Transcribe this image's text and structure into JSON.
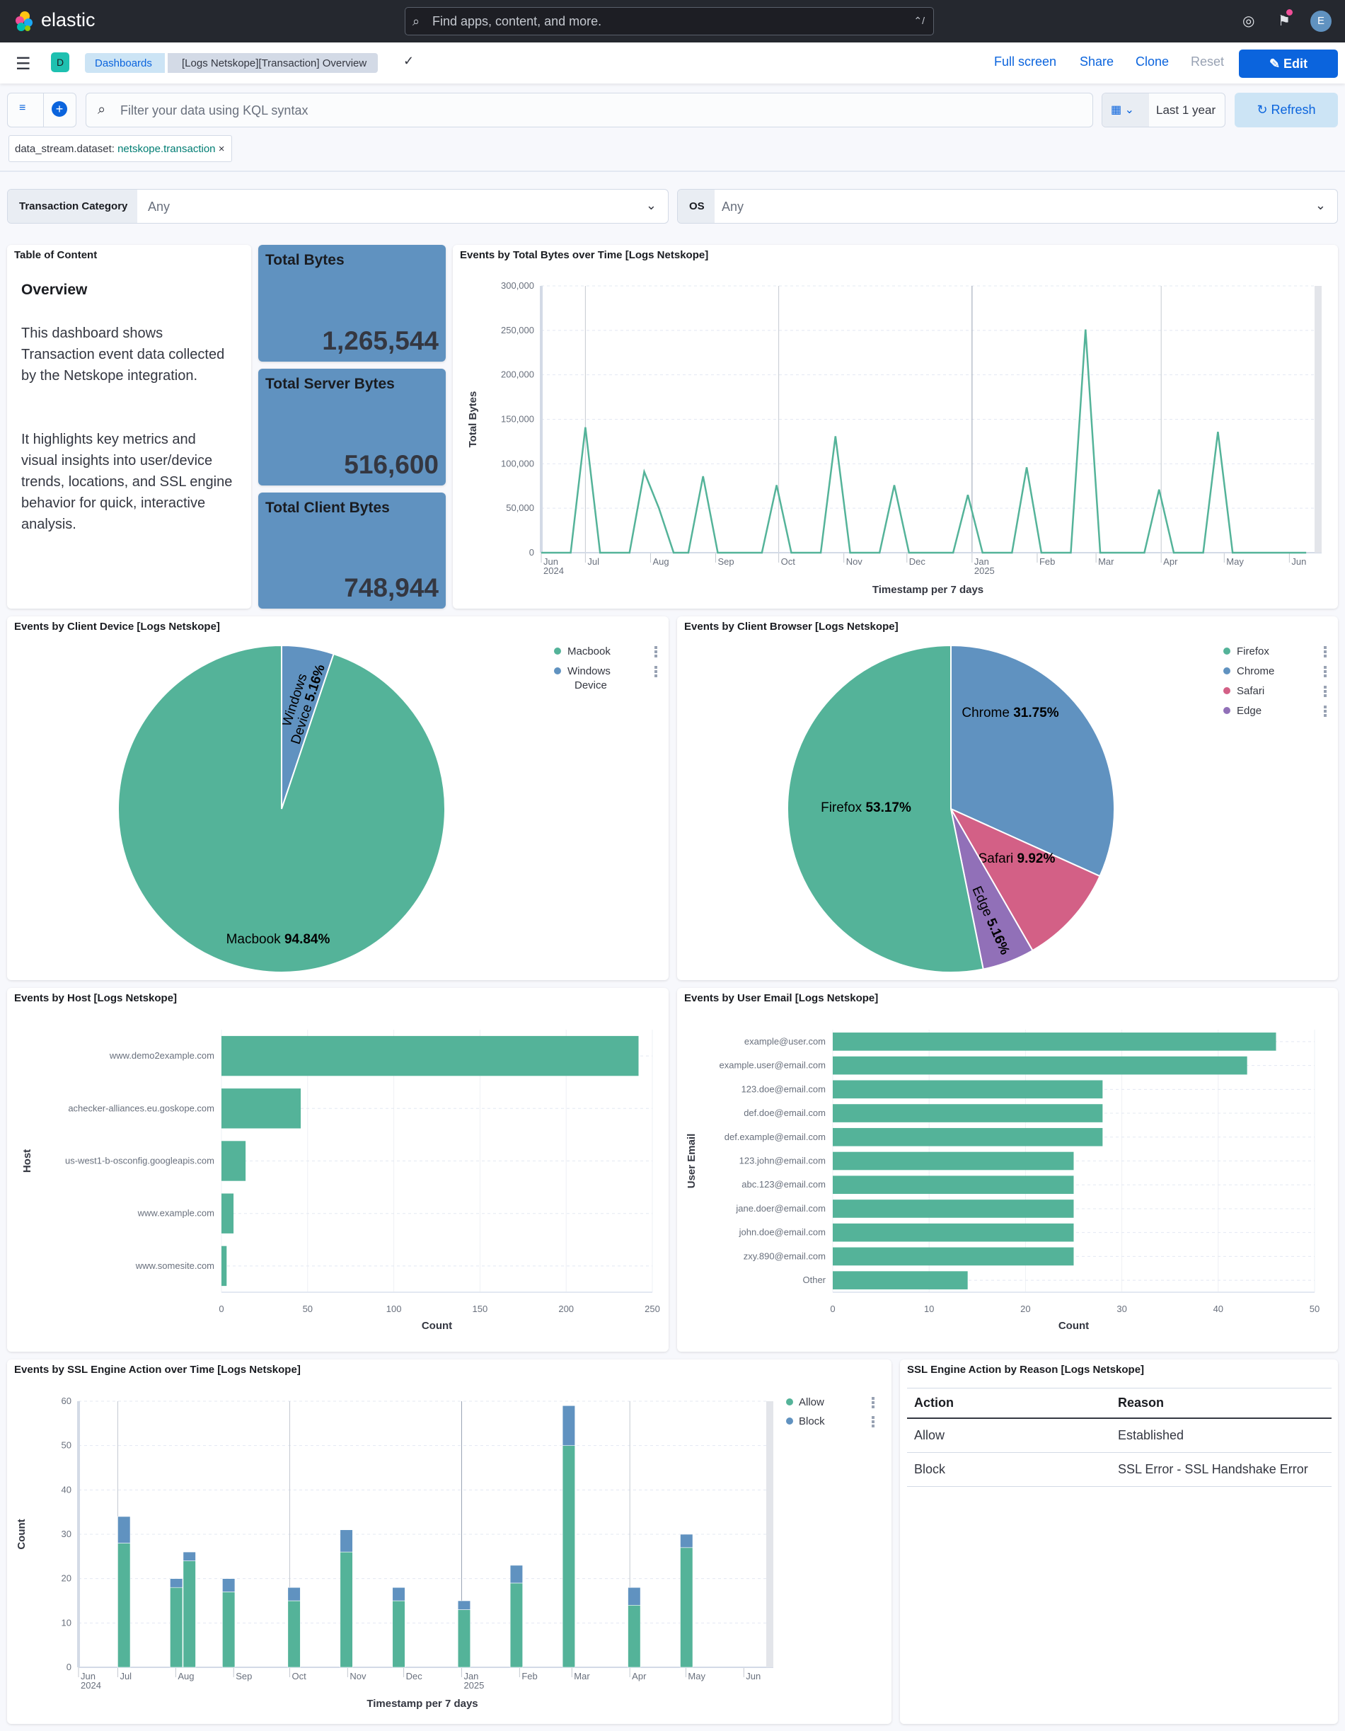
{
  "header": {
    "brand": "elastic",
    "search_placeholder": "Find apps, content, and more.",
    "search_shortcut": "⌃/",
    "avatar": "E",
    "icons": [
      "help-icon",
      "newsfeed-icon"
    ]
  },
  "nav": {
    "space": "D",
    "breadcrumbs": [
      "Dashboards",
      "[Logs Netskope][Transaction] Overview"
    ],
    "full_screen": "Full screen",
    "share": "Share",
    "clone": "Clone",
    "reset": "Reset",
    "edit": "Edit"
  },
  "query": {
    "placeholder": "Filter your data using KQL syntax",
    "time": "Last 1 year",
    "refresh": "Refresh"
  },
  "filter": {
    "field": "data_stream.dataset:",
    "value": "netskope.transaction"
  },
  "controls": [
    {
      "label": "Transaction Category",
      "value": "Any"
    },
    {
      "label": "OS",
      "value": "Any"
    }
  ],
  "toc": {
    "title": "Table of Content",
    "heading": "Overview",
    "paragraphs": [
      "This dashboard shows Transaction event data collected by the Netskope integration.",
      "It highlights key metrics and visual insights into user/device trends, locations, and SSL engine behavior for quick, interactive analysis."
    ]
  },
  "metrics": [
    {
      "label": "Total Bytes",
      "value": "1,265,544"
    },
    {
      "label": "Total Server Bytes",
      "value": "516,600"
    },
    {
      "label": "Total Client Bytes",
      "value": "748,944"
    }
  ],
  "colors": {
    "green": "#54b399",
    "blue": "#6092c0",
    "pink": "#d36086",
    "purple": "#9170b8",
    "accent": "#0b64dd",
    "topbar": "#25282f"
  },
  "chart_data": [
    {
      "type": "line",
      "title": "Events by Total Bytes over Time [Logs Netskope]",
      "xlabel": "Timestamp per 7 days",
      "ylabel": "Total Bytes",
      "xlim": [
        "2024-06-10",
        "2025-06-13"
      ],
      "ylim": [
        0,
        300000
      ],
      "grid": true,
      "y_ticks": [
        0,
        50000,
        100000,
        150000,
        200000,
        250000,
        300000
      ],
      "x_ticks": [
        {
          "date": "2024-06-10",
          "label": "Jun",
          "sub": "2024"
        },
        {
          "date": "2024-07-01",
          "label": "Jul"
        },
        {
          "date": "2024-08-01",
          "label": "Aug"
        },
        {
          "date": "2024-09-01",
          "label": "Sep"
        },
        {
          "date": "2024-10-01",
          "label": "Oct"
        },
        {
          "date": "2024-11-01",
          "label": "Nov"
        },
        {
          "date": "2024-12-01",
          "label": "Dec"
        },
        {
          "date": "2025-01-01",
          "label": "Jan",
          "sub": "2025"
        },
        {
          "date": "2025-02-01",
          "label": "Feb"
        },
        {
          "date": "2025-03-01",
          "label": "Mar"
        },
        {
          "date": "2025-04-01",
          "label": "Apr"
        },
        {
          "date": "2025-05-01",
          "label": "May"
        },
        {
          "date": "2025-06-01",
          "label": "Jun"
        }
      ],
      "x": [
        "2024-06-10",
        "2024-06-17",
        "2024-06-24",
        "2024-07-01",
        "2024-07-08",
        "2024-07-15",
        "2024-07-22",
        "2024-07-29",
        "2024-08-05",
        "2024-08-12",
        "2024-08-19",
        "2024-08-26",
        "2024-09-02",
        "2024-09-09",
        "2024-09-16",
        "2024-09-23",
        "2024-09-30",
        "2024-10-07",
        "2024-10-14",
        "2024-10-21",
        "2024-10-28",
        "2024-11-04",
        "2024-11-11",
        "2024-11-18",
        "2024-11-25",
        "2024-12-02",
        "2024-12-09",
        "2024-12-16",
        "2024-12-23",
        "2024-12-30",
        "2025-01-06",
        "2025-01-13",
        "2025-01-20",
        "2025-01-27",
        "2025-02-03",
        "2025-02-10",
        "2025-02-17",
        "2025-02-24",
        "2025-03-03",
        "2025-03-10",
        "2025-03-17",
        "2025-03-24",
        "2025-03-31",
        "2025-04-07",
        "2025-04-14",
        "2025-04-21",
        "2025-04-28",
        "2025-05-05",
        "2025-05-12",
        "2025-05-19",
        "2025-05-26",
        "2025-06-02",
        "2025-06-09"
      ],
      "values": [
        0,
        0,
        0,
        141000,
        0,
        0,
        0,
        91000,
        50000,
        0,
        0,
        86000,
        0,
        0,
        0,
        0,
        76000,
        0,
        0,
        0,
        131000,
        0,
        0,
        0,
        76000,
        0,
        0,
        0,
        0,
        65000,
        0,
        0,
        0,
        96000,
        0,
        0,
        0,
        251000,
        0,
        0,
        0,
        0,
        71000,
        0,
        0,
        0,
        136000,
        0,
        0,
        0,
        0,
        0,
        0
      ]
    },
    {
      "type": "pie",
      "title": "Events by Client Device [Logs Netskope]",
      "legend": "top-right",
      "slices": [
        {
          "label": "Windows Device",
          "label_lines": [
            "Windows",
            "Device"
          ],
          "value": 5.16,
          "color": "#6092c0"
        },
        {
          "label": "Macbook",
          "value": 94.84,
          "color": "#54b399"
        }
      ],
      "legend_items": [
        {
          "label": "Macbook",
          "color": "#54b399"
        },
        {
          "label": "Windows Device",
          "label_lines": [
            "Windows",
            "Device"
          ],
          "color": "#6092c0"
        }
      ]
    },
    {
      "type": "pie",
      "title": "Events by Client Browser [Logs Netskope]",
      "legend": "top-right",
      "slices": [
        {
          "label": "Chrome",
          "value": 31.75,
          "color": "#6092c0"
        },
        {
          "label": "Safari",
          "value": 9.92,
          "color": "#d36086"
        },
        {
          "label": "Edge",
          "value": 5.16,
          "color": "#9170b8"
        },
        {
          "label": "Firefox",
          "value": 53.17,
          "color": "#54b399"
        }
      ],
      "legend_items": [
        {
          "label": "Firefox",
          "color": "#54b399"
        },
        {
          "label": "Chrome",
          "color": "#6092c0"
        },
        {
          "label": "Safari",
          "color": "#d36086"
        },
        {
          "label": "Edge",
          "color": "#9170b8"
        }
      ]
    },
    {
      "type": "bar",
      "orientation": "horizontal",
      "title": "Events by Host [Logs Netskope]",
      "xlabel": "Count",
      "ylabel": "Host",
      "xlim": [
        0,
        250
      ],
      "x_ticks": [
        0,
        50,
        100,
        150,
        200,
        250
      ],
      "categories": [
        "www.demo2example.com",
        "achecker-alliances.eu.goskope.com",
        "us-west1-b-osconfig.googleapis.com",
        "www.example.com",
        "www.somesite.com"
      ],
      "values": [
        242,
        46,
        14,
        7,
        3
      ]
    },
    {
      "type": "bar",
      "orientation": "horizontal",
      "title": "Events by User Email [Logs Netskope]",
      "xlabel": "Count",
      "ylabel": "User Email",
      "xlim": [
        0,
        50
      ],
      "x_ticks": [
        0,
        10,
        20,
        30,
        40,
        50
      ],
      "categories": [
        "example@user.com",
        "example.user@email.com",
        "123.doe@email.com",
        "def.doe@email.com",
        "def.example@email.com",
        "123.john@email.com",
        "abc.123@email.com",
        "jane.doer@email.com",
        "john.doe@email.com",
        "zxy.890@email.com",
        "Other"
      ],
      "values": [
        46,
        43,
        28,
        28,
        28,
        25,
        25,
        25,
        25,
        25,
        14
      ]
    },
    {
      "type": "bar",
      "stacked": true,
      "title": "Events by SSL Engine Action over Time [Logs Netskope]",
      "xlabel": "Timestamp per 7 days",
      "ylabel": "Count",
      "legend": "top-right",
      "xlim": [
        "2024-06-10",
        "2025-06-13"
      ],
      "ylim": [
        0,
        60
      ],
      "y_ticks": [
        0,
        10,
        20,
        30,
        40,
        50,
        60
      ],
      "x_ticks": [
        {
          "date": "2024-06-10",
          "label": "Jun",
          "sub": "2024"
        },
        {
          "date": "2024-07-01",
          "label": "Jul"
        },
        {
          "date": "2024-08-01",
          "label": "Aug"
        },
        {
          "date": "2024-09-01",
          "label": "Sep"
        },
        {
          "date": "2024-10-01",
          "label": "Oct"
        },
        {
          "date": "2024-11-01",
          "label": "Nov"
        },
        {
          "date": "2024-12-01",
          "label": "Dec"
        },
        {
          "date": "2025-01-01",
          "label": "Jan",
          "sub": "2025"
        },
        {
          "date": "2025-02-01",
          "label": "Feb"
        },
        {
          "date": "2025-03-01",
          "label": "Mar"
        },
        {
          "date": "2025-04-01",
          "label": "Apr"
        },
        {
          "date": "2025-05-01",
          "label": "May"
        },
        {
          "date": "2025-06-01",
          "label": "Jun"
        }
      ],
      "x": [
        "2024-07-01",
        "2024-07-29",
        "2024-08-05",
        "2024-08-26",
        "2024-09-30",
        "2024-10-28",
        "2024-11-25",
        "2024-12-30",
        "2025-01-27",
        "2025-02-24",
        "2025-03-31",
        "2025-04-28"
      ],
      "series": [
        {
          "name": "Allow",
          "color": "#54b399",
          "values": [
            28,
            18,
            24,
            17,
            15,
            26,
            15,
            13,
            19,
            50,
            14,
            27
          ]
        },
        {
          "name": "Block",
          "color": "#6092c0",
          "values": [
            6,
            2,
            2,
            3,
            3,
            5,
            3,
            2,
            4,
            9,
            4,
            3
          ]
        }
      ]
    },
    {
      "type": "table",
      "title": "SSL Engine Action by Reason [Logs Netskope]",
      "columns": [
        "Action",
        "Reason"
      ],
      "rows": [
        [
          "Allow",
          "Established"
        ],
        [
          "Block",
          "SSL Error - SSL Handshake Error"
        ]
      ]
    }
  ]
}
